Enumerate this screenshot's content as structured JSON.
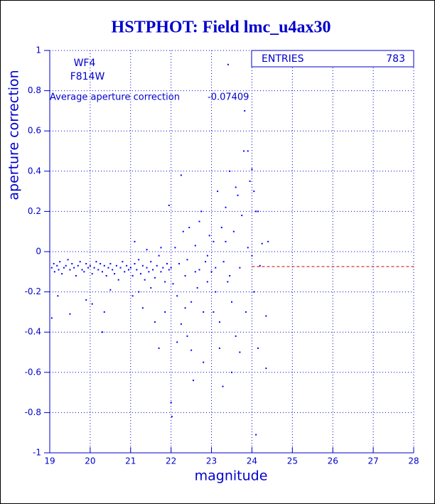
{
  "chart_data": {
    "type": "scatter",
    "title": "HSTPHOT: Field lmc_u4ax30",
    "xlabel": "magnitude",
    "ylabel": "aperture correction",
    "annotations": [
      "WF4",
      "F814W"
    ],
    "average_label": "Average aperture correction",
    "average": -0.07409,
    "stats_label": "ENTRIES",
    "entries": 783,
    "color": "#0000ff",
    "average_color": "#cc0000",
    "grid": true,
    "xlim": [
      19,
      28
    ],
    "ylim": [
      -1,
      1
    ],
    "xticks": [
      19,
      20,
      21,
      22,
      23,
      24,
      25,
      26,
      27,
      28
    ],
    "yticks": [
      -1,
      -0.8,
      -0.6,
      -0.4,
      -0.2,
      0,
      0.2,
      0.4,
      0.6,
      0.8,
      1
    ],
    "x": [
      19.05,
      19.1,
      19.12,
      19.18,
      19.22,
      19.25,
      19.3,
      19.35,
      19.4,
      19.45,
      19.5,
      19.55,
      19.6,
      19.65,
      19.7,
      19.75,
      19.8,
      19.85,
      19.9,
      19.95,
      20.0,
      20.05,
      20.1,
      20.15,
      20.2,
      20.25,
      20.3,
      20.35,
      20.4,
      20.45,
      20.5,
      20.55,
      20.6,
      20.65,
      20.7,
      20.75,
      20.8,
      20.85,
      20.9,
      20.95,
      19.05,
      19.2,
      19.5,
      19.9,
      20.05,
      20.35,
      20.5,
      20.3,
      21.0,
      21.05,
      21.1,
      21.15,
      21.2,
      21.25,
      21.3,
      21.35,
      21.4,
      21.45,
      21.5,
      21.55,
      21.6,
      21.65,
      21.7,
      21.75,
      21.8,
      21.85,
      21.9,
      21.95,
      21.1,
      21.05,
      21.3,
      21.5,
      21.7,
      21.85,
      21.6,
      21.75,
      21.4,
      21.2,
      22.0,
      22.05,
      22.1,
      22.15,
      22.2,
      22.25,
      22.3,
      22.35,
      22.4,
      22.45,
      22.5,
      22.55,
      22.6,
      22.65,
      22.7,
      22.75,
      22.8,
      22.85,
      22.9,
      22.95,
      22.02,
      22.0,
      22.25,
      22.4,
      22.6,
      22.8,
      22.9,
      22.15,
      22.35,
      22.7,
      21.95,
      22.5,
      23.0,
      23.05,
      23.1,
      23.15,
      23.2,
      23.25,
      23.3,
      23.35,
      23.4,
      23.45,
      23.5,
      23.55,
      23.6,
      23.65,
      23.7,
      23.75,
      23.8,
      23.85,
      23.9,
      23.95,
      23.41,
      23.82,
      23.28,
      23.2,
      23.5,
      23.35,
      23.6,
      23.9,
      23.7,
      23.1,
      23.05,
      23.45,
      24.0,
      24.05,
      24.1,
      24.15,
      24.1,
      24.2,
      24.25,
      24.35,
      24.35,
      24.4,
      24.0,
      24.05,
      24.15
    ],
    "values": [
      -0.08,
      -0.06,
      -0.1,
      -0.07,
      -0.09,
      -0.05,
      -0.11,
      -0.08,
      -0.07,
      -0.04,
      -0.09,
      -0.06,
      -0.08,
      -0.12,
      -0.07,
      -0.05,
      -0.09,
      -0.1,
      -0.06,
      -0.08,
      -0.07,
      -0.11,
      -0.08,
      -0.05,
      -0.09,
      -0.06,
      -0.1,
      -0.07,
      -0.12,
      -0.08,
      -0.06,
      -0.09,
      -0.11,
      -0.07,
      -0.14,
      -0.08,
      -0.05,
      -0.1,
      -0.07,
      -0.09,
      -0.33,
      -0.22,
      -0.31,
      -0.24,
      -0.26,
      -0.3,
      -0.19,
      -0.4,
      -0.08,
      -0.12,
      -0.06,
      -0.09,
      -0.04,
      -0.11,
      -0.07,
      -0.14,
      -0.08,
      -0.1,
      -0.05,
      -0.09,
      -0.13,
      -0.07,
      -0.02,
      -0.1,
      -0.08,
      -0.15,
      -0.06,
      -0.09,
      0.05,
      -0.22,
      -0.28,
      -0.18,
      -0.48,
      -0.3,
      -0.35,
      0.02,
      0.01,
      -0.2,
      -0.08,
      -0.16,
      0.02,
      -0.22,
      -0.06,
      -0.36,
      0.1,
      -0.12,
      -0.04,
      0.12,
      -0.25,
      -0.64,
      0.03,
      -0.18,
      -0.09,
      0.2,
      -0.3,
      -0.05,
      -0.15,
      0.08,
      -0.82,
      -0.75,
      0.38,
      -0.42,
      -0.1,
      -0.55,
      -0.02,
      -0.45,
      -0.28,
      0.15,
      0.23,
      -0.49,
      -0.1,
      0.05,
      -0.2,
      0.3,
      -0.35,
      0.12,
      -0.05,
      0.22,
      -0.15,
      0.4,
      -0.25,
      0.1,
      -0.42,
      0.28,
      -0.08,
      0.18,
      0.5,
      -0.3,
      0.02,
      0.35,
      0.93,
      0.7,
      -0.67,
      -0.48,
      -0.6,
      0.05,
      0.32,
      0.5,
      -0.5,
      -0.08,
      -0.3,
      -0.12,
      0.41,
      -0.2,
      0.2,
      -0.48,
      -0.91,
      -0.07,
      0.04,
      -0.32,
      -0.58,
      0.05,
      -0.02,
      0.3,
      0.2
    ]
  }
}
